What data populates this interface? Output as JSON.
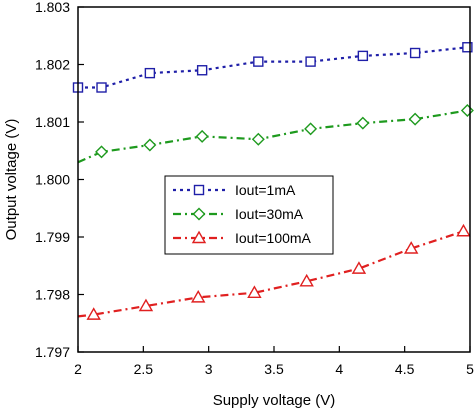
{
  "chart_data": {
    "type": "line",
    "title": "",
    "xlabel": "Supply voltage (V)",
    "ylabel": "Output voltage (V)",
    "xlim": [
      2,
      5
    ],
    "ylim": [
      1.797,
      1.803
    ],
    "x_ticks": [
      "2",
      "2.5",
      "3",
      "3.5",
      "4",
      "4.5",
      "5"
    ],
    "y_ticks": [
      "1.797",
      "1.798",
      "1.799",
      "1.800",
      "1.801",
      "1.802",
      "1.803"
    ],
    "grid": false,
    "legend_position": "center",
    "series": [
      {
        "name": "Iout=1mA",
        "color": "#1f1fa8",
        "marker": "square",
        "line_style": "dotted",
        "x": [
          2.0,
          2.18,
          2.55,
          2.95,
          3.38,
          3.78,
          4.18,
          4.58,
          4.98
        ],
        "y": [
          1.8016,
          1.8016,
          1.80185,
          1.8019,
          1.80205,
          1.80205,
          1.80215,
          1.8022,
          1.8023
        ]
      },
      {
        "name": "Iout=30mA",
        "color": "#1e9a1e",
        "marker": "diamond",
        "line_style": "dash-dot",
        "x": [
          2.18,
          2.55,
          2.95,
          3.38,
          3.78,
          4.18,
          4.58,
          4.98
        ],
        "y": [
          1.80048,
          1.8006,
          1.80075,
          1.8007,
          1.80088,
          1.80098,
          1.80105,
          1.8012
        ]
      },
      {
        "name": "Iout=100mA",
        "color": "#e02020",
        "marker": "triangle",
        "line_style": "dash-dot",
        "x": [
          2.12,
          2.52,
          2.92,
          3.35,
          3.75,
          4.15,
          4.55,
          4.95
        ],
        "y": [
          1.79765,
          1.7978,
          1.79795,
          1.79803,
          1.79823,
          1.79845,
          1.7988,
          1.7991
        ]
      }
    ]
  }
}
